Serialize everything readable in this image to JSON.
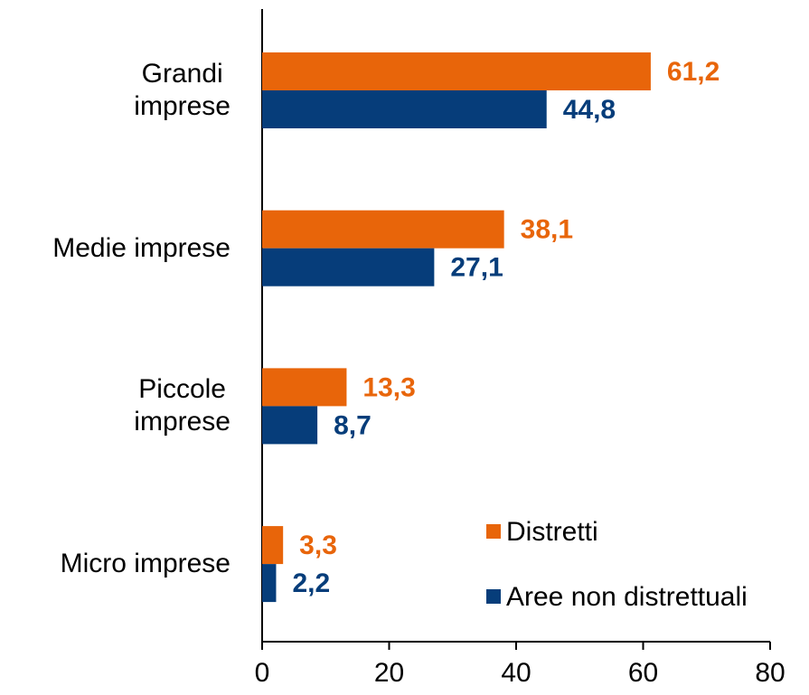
{
  "chart_data": {
    "type": "hbar",
    "categories": [
      "Grandi\nimprese",
      "Medie imprese",
      "Piccole\nimprese",
      "Micro imprese"
    ],
    "series": [
      {
        "name": "Distretti",
        "color": "#e8650a",
        "values": [
          61.2,
          38.1,
          13.3,
          3.3
        ],
        "value_labels": [
          "61,2",
          "38,1",
          "13,3",
          "3,3"
        ]
      },
      {
        "name": "Aree non distrettuali",
        "color": "#063d7a",
        "values": [
          44.8,
          27.1,
          8.7,
          2.2
        ],
        "value_labels": [
          "44,8",
          "27,1",
          "8,7",
          "2,2"
        ]
      }
    ],
    "xlim": [
      0,
      80
    ],
    "xticks": [
      0,
      20,
      40,
      60,
      80
    ],
    "legend": "lower right"
  }
}
